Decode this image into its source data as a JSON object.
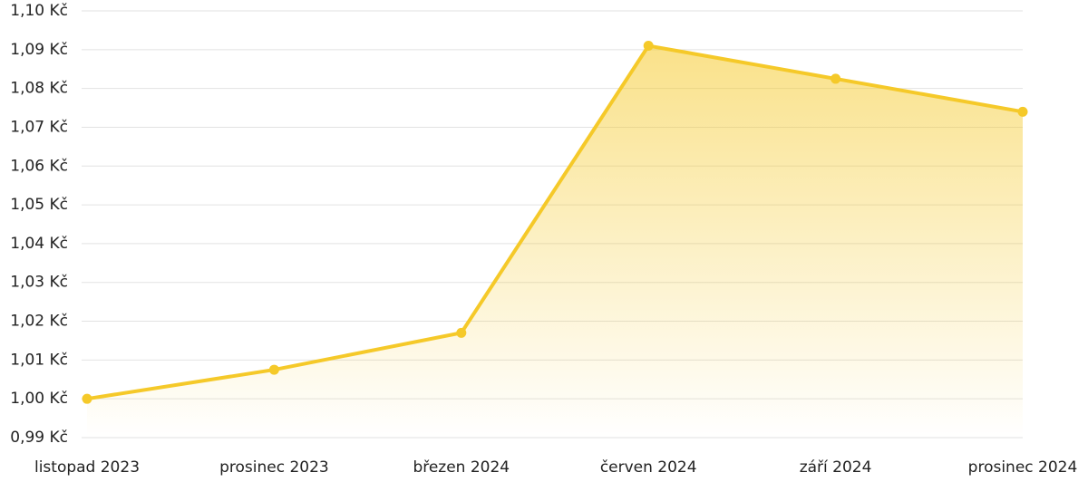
{
  "chart_data": {
    "type": "area",
    "categories": [
      "listopad 2023",
      "prosinec 2023",
      "březen 2024",
      "červen 2024",
      "září 2024",
      "prosinec 2024"
    ],
    "values": [
      1.0,
      1.0075,
      1.017,
      1.091,
      1.0825,
      1.074
    ],
    "color": "#f5c929",
    "ylim": [
      0.99,
      1.1
    ],
    "yticks": [
      {
        "value": 0.99,
        "label": "0,99 Kč"
      },
      {
        "value": 1.0,
        "label": "1,00 Kč"
      },
      {
        "value": 1.01,
        "label": "1,01 Kč"
      },
      {
        "value": 1.02,
        "label": "1,02 Kč"
      },
      {
        "value": 1.03,
        "label": "1,03 Kč"
      },
      {
        "value": 1.04,
        "label": "1,04 Kč"
      },
      {
        "value": 1.05,
        "label": "1,05 Kč"
      },
      {
        "value": 1.06,
        "label": "1,06 Kč"
      },
      {
        "value": 1.07,
        "label": "1,07 Kč"
      },
      {
        "value": 1.08,
        "label": "1,08 Kč"
      },
      {
        "value": 1.09,
        "label": "1,09 Kč"
      },
      {
        "value": 1.1,
        "label": "1,10 Kč"
      }
    ],
    "grid": true
  }
}
